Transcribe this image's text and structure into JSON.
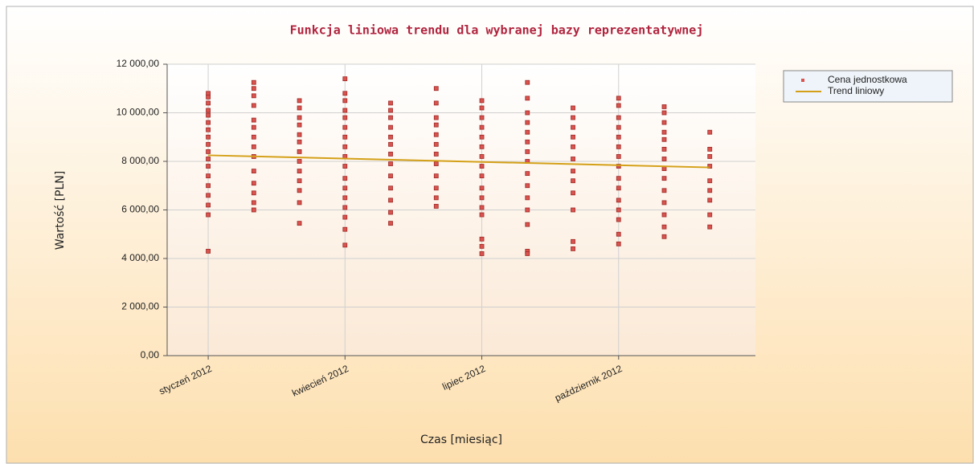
{
  "chart_data": {
    "type": "scatter",
    "title": "Funkcja liniowa trendu dla wybranej bazy reprezentatywnej",
    "x_label": "Czas [miesiąc]",
    "y_label": "Wartość [PLN]",
    "xlim": [
      0.1,
      13.0
    ],
    "ylim": [
      0,
      12000
    ],
    "xticks": [
      {
        "value": 1,
        "label": "styczeń 2012"
      },
      {
        "value": 4,
        "label": "kwiecień 2012"
      },
      {
        "value": 7,
        "label": "lipiec 2012"
      },
      {
        "value": 10,
        "label": "październik 2012"
      }
    ],
    "yticks": [
      {
        "value": 0,
        "label": "0,00"
      },
      {
        "value": 2000,
        "label": "2 000,00"
      },
      {
        "value": 4000,
        "label": "4 000,00"
      },
      {
        "value": 6000,
        "label": "6 000,00"
      },
      {
        "value": 8000,
        "label": "8 000,00"
      },
      {
        "value": 10000,
        "label": "10 000,00"
      },
      {
        "value": 12000,
        "label": "12 000,00"
      }
    ],
    "grid": true,
    "legend": "right",
    "series": [
      {
        "name": "Cena jednostkowa",
        "type": "scatter",
        "color": "#d9534f",
        "x": [
          1,
          1,
          1,
          1,
          1,
          1,
          1,
          1,
          1,
          1,
          1,
          1,
          1,
          1,
          1,
          1,
          1,
          1,
          2,
          2,
          2,
          2,
          2,
          2,
          2,
          2,
          2,
          2,
          2,
          2,
          2,
          2,
          3,
          3,
          3,
          3,
          3,
          3,
          3,
          3,
          3,
          3,
          3,
          3,
          3,
          4,
          4,
          4,
          4,
          4,
          4,
          4,
          4,
          4,
          4,
          4,
          4,
          4,
          4,
          4,
          4,
          4,
          5,
          5,
          5,
          5,
          5,
          5,
          5,
          5,
          5,
          5,
          5,
          5,
          5,
          6,
          6,
          6,
          6,
          6,
          6,
          6,
          6,
          6,
          6,
          6,
          6,
          7,
          7,
          7,
          7,
          7,
          7,
          7,
          7,
          7,
          7,
          7,
          7,
          7,
          7,
          7,
          7,
          8,
          8,
          8,
          8,
          8,
          8,
          8,
          8,
          8,
          8,
          8,
          8,
          8,
          8,
          8,
          9,
          9,
          9,
          9,
          9,
          9,
          9,
          9,
          9,
          9,
          9,
          9,
          10,
          10,
          10,
          10,
          10,
          10,
          10,
          10,
          10,
          10,
          10,
          10,
          10,
          10,
          10,
          11,
          11,
          11,
          11,
          11,
          11,
          11,
          11,
          11,
          11,
          11,
          11,
          11,
          11,
          12,
          12,
          12,
          12,
          12,
          12,
          12,
          12,
          12
        ],
        "values": [
          10800,
          10650,
          10400,
          10100,
          9900,
          9600,
          9300,
          9000,
          8700,
          8400,
          8100,
          7800,
          7400,
          7000,
          6600,
          6200,
          5800,
          4300,
          11250,
          11000,
          10700,
          10300,
          9700,
          9400,
          9000,
          8600,
          8200,
          7600,
          7100,
          6700,
          6300,
          6000,
          10500,
          10200,
          9800,
          9500,
          9100,
          8800,
          8400,
          8000,
          7600,
          7200,
          6800,
          6300,
          5450,
          11400,
          10800,
          10500,
          10100,
          9800,
          9400,
          9000,
          8600,
          8200,
          7800,
          7300,
          6900,
          6500,
          6100,
          5700,
          5200,
          4550,
          10400,
          10100,
          9800,
          9400,
          9000,
          8700,
          8300,
          7900,
          7400,
          6900,
          6400,
          5900,
          5450,
          11000,
          10400,
          9800,
          9500,
          9100,
          8700,
          8300,
          7900,
          7400,
          6900,
          6500,
          6150,
          10500,
          10200,
          9800,
          9400,
          9000,
          8600,
          8200,
          7800,
          7400,
          6900,
          6500,
          6100,
          5800,
          4800,
          4500,
          4200,
          11250,
          10600,
          10000,
          9600,
          9200,
          8800,
          8400,
          8000,
          7500,
          7000,
          6500,
          6000,
          5400,
          4300,
          4200,
          10200,
          9800,
          9400,
          9000,
          8600,
          8100,
          7600,
          7200,
          6700,
          6000,
          4700,
          4400,
          10600,
          10300,
          9800,
          9400,
          9000,
          8600,
          8200,
          7800,
          7300,
          6900,
          6400,
          6000,
          5600,
          5000,
          4600,
          10250,
          10000,
          9600,
          9200,
          8900,
          8500,
          8100,
          7700,
          7300,
          6800,
          6300,
          5800,
          5300,
          4900,
          9200,
          8500,
          8200,
          7800,
          7200,
          6800,
          6400,
          5800,
          5300
        ]
      },
      {
        "name": "Trend liniowy",
        "type": "line",
        "color": "#d4a017",
        "x": [
          1,
          12
        ],
        "values": [
          8250,
          7750
        ]
      }
    ]
  }
}
